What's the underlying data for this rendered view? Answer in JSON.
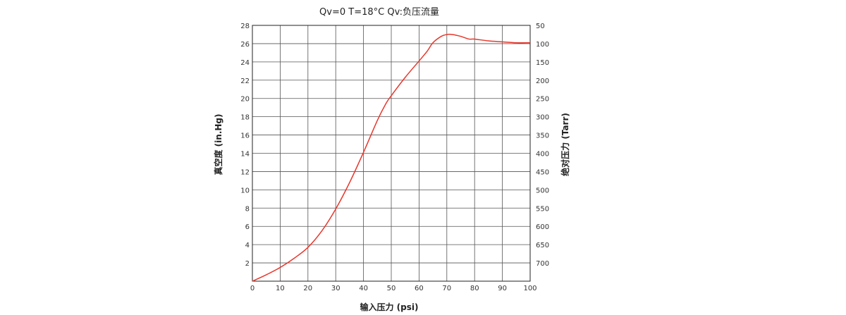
{
  "chart_data": {
    "type": "line",
    "title": "Qv=0   T=18°C    Qv:负压流量",
    "xlabel": "输入压力 (psi)",
    "ylabel": "真空度 (in.Hg)",
    "y2label": "绝对压力 (Tarr)",
    "xlim": [
      0,
      100
    ],
    "ylim": [
      0,
      28
    ],
    "grid": true,
    "x_ticks": [
      "0",
      "10",
      "20",
      "30",
      "40",
      "50",
      "60",
      "70",
      "80",
      "90",
      "100"
    ],
    "y_ticks": [
      "2",
      "4",
      "6",
      "8",
      "10",
      "12",
      "14",
      "16",
      "18",
      "20",
      "22",
      "24",
      "26",
      "28"
    ],
    "y2_ticks": [
      "700",
      "650",
      "600",
      "550",
      "500",
      "450",
      "400",
      "350",
      "300",
      "250",
      "200",
      "150",
      "100",
      "50"
    ],
    "series": [
      {
        "color": "#e8372c",
        "x": [
          0,
          5,
          10,
          15,
          20,
          25,
          30,
          35,
          40,
          45,
          48,
          50,
          55,
          60,
          63,
          65,
          68,
          70,
          72,
          75,
          78,
          80,
          85,
          90,
          95,
          100
        ],
        "y": [
          0,
          0.7,
          1.5,
          2.5,
          3.7,
          5.5,
          7.9,
          10.8,
          14.1,
          17.6,
          19.4,
          20.3,
          22.3,
          24.1,
          25.2,
          26.1,
          26.8,
          27.0,
          27.0,
          26.8,
          26.5,
          26.5,
          26.3,
          26.2,
          26.1,
          26.1
        ]
      }
    ]
  }
}
